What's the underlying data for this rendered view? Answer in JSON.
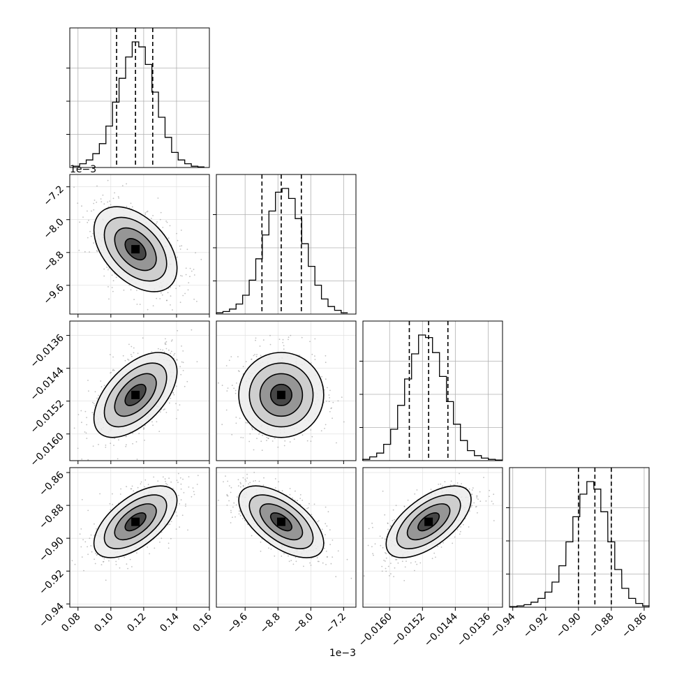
{
  "chart_data": {
    "type": "corner",
    "params": [
      {
        "range": [
          0.075,
          0.16
        ],
        "ticks": [
          0.08,
          0.1,
          0.12,
          0.14,
          0.16
        ],
        "tick_labels": [
          "0.08",
          "0.10",
          "0.12",
          "0.14",
          "0.16"
        ],
        "quantiles": [
          0.1035,
          0.115,
          0.1255
        ],
        "offset_label": "",
        "hist": {
          "x": [
            0.079,
            0.083,
            0.087,
            0.091,
            0.095,
            0.099,
            0.103,
            0.107,
            0.111,
            0.115,
            0.119,
            0.123,
            0.127,
            0.131,
            0.135,
            0.139,
            0.143,
            0.147,
            0.151,
            0.155
          ],
          "values": [
            0.01,
            0.03,
            0.06,
            0.11,
            0.19,
            0.33,
            0.52,
            0.71,
            0.88,
            1.0,
            0.96,
            0.82,
            0.6,
            0.4,
            0.24,
            0.12,
            0.06,
            0.03,
            0.01,
            0.005
          ]
        },
        "center": 0.115,
        "sigma": 0.011
      },
      {
        "range": [
          -10.3,
          -6.9
        ],
        "ticks": [
          -9.6,
          -8.8,
          -8.0,
          -7.2
        ],
        "tick_labels": [
          "−9.6",
          "−8.8",
          "−8.0",
          "−7.2"
        ],
        "quantiles": [
          -9.19,
          -8.72,
          -8.23
        ],
        "offset_label": "1e−3",
        "hist": {
          "x": [
            -10.22,
            -10.06,
            -9.9,
            -9.74,
            -9.58,
            -9.42,
            -9.26,
            -9.1,
            -8.94,
            -8.78,
            -8.62,
            -8.46,
            -8.3,
            -8.14,
            -7.98,
            -7.82,
            -7.66,
            -7.5,
            -7.34,
            -7.18
          ],
          "values": [
            0.01,
            0.02,
            0.04,
            0.08,
            0.15,
            0.27,
            0.44,
            0.63,
            0.82,
            0.97,
            1.0,
            0.92,
            0.76,
            0.56,
            0.38,
            0.23,
            0.12,
            0.06,
            0.03,
            0.01
          ]
        },
        "center": -8.72,
        "sigma": 0.45
      },
      {
        "range": [
          -0.01665,
          -0.01325
        ],
        "ticks": [
          -0.016,
          -0.0152,
          -0.0144,
          -0.0136
        ],
        "tick_labels": [
          "−0.0160",
          "−0.0152",
          "−0.0144",
          "−0.0136"
        ],
        "quantiles": [
          -0.01552,
          -0.01505,
          -0.01458
        ],
        "offset_label": "",
        "hist": {
          "x": [
            -0.01657,
            -0.0164,
            -0.01623,
            -0.01606,
            -0.01589,
            -0.01572,
            -0.01555,
            -0.01538,
            -0.01521,
            -0.01504,
            -0.01487,
            -0.0147,
            -0.01453,
            -0.01436,
            -0.01419,
            -0.01402,
            -0.01385,
            -0.01368,
            -0.01351,
            -0.01334
          ],
          "values": [
            0.01,
            0.03,
            0.06,
            0.13,
            0.25,
            0.44,
            0.65,
            0.85,
            1.0,
            0.98,
            0.86,
            0.67,
            0.47,
            0.29,
            0.16,
            0.08,
            0.04,
            0.02,
            0.01,
            0.005
          ]
        },
        "center": -0.01505,
        "sigma": 0.00045
      },
      {
        "range": [
          -0.942,
          -0.857
        ],
        "ticks": [
          -0.94,
          -0.92,
          -0.9,
          -0.88,
          -0.86
        ],
        "tick_labels": [
          "−0.94",
          "−0.92",
          "−0.90",
          "−0.88",
          "−0.86"
        ],
        "quantiles": [
          -0.9,
          -0.89,
          -0.88
        ],
        "offset_label": "",
        "hist": {
          "x": [
            -0.9395,
            -0.9353,
            -0.931,
            -0.9268,
            -0.9225,
            -0.9183,
            -0.914,
            -0.9098,
            -0.9055,
            -0.9013,
            -0.897,
            -0.8928,
            -0.8885,
            -0.8843,
            -0.88,
            -0.8758,
            -0.8715,
            -0.8673,
            -0.863,
            -0.8588
          ],
          "values": [
            0.005,
            0.01,
            0.02,
            0.04,
            0.07,
            0.12,
            0.2,
            0.33,
            0.52,
            0.72,
            0.9,
            1.0,
            0.94,
            0.76,
            0.52,
            0.3,
            0.15,
            0.07,
            0.03,
            0.01
          ]
        },
        "center": -0.89,
        "sigma": 0.0095
      }
    ],
    "correlations": [
      {
        "row": 1,
        "col": 0,
        "rho": -0.45
      },
      {
        "row": 2,
        "col": 0,
        "rho": 0.55
      },
      {
        "row": 2,
        "col": 1,
        "rho": 0.0
      },
      {
        "row": 3,
        "col": 0,
        "rho": 0.6
      },
      {
        "row": 3,
        "col": 1,
        "rho": -0.6
      },
      {
        "row": 3,
        "col": 2,
        "rho": 0.62
      }
    ],
    "grid": true,
    "contour_sigma_levels": [
      0.5,
      1.0,
      1.5,
      2.0
    ],
    "colors": {
      "line": "#000000",
      "scatter": "#8a8a8a",
      "grid": "#b0b0b0"
    }
  }
}
